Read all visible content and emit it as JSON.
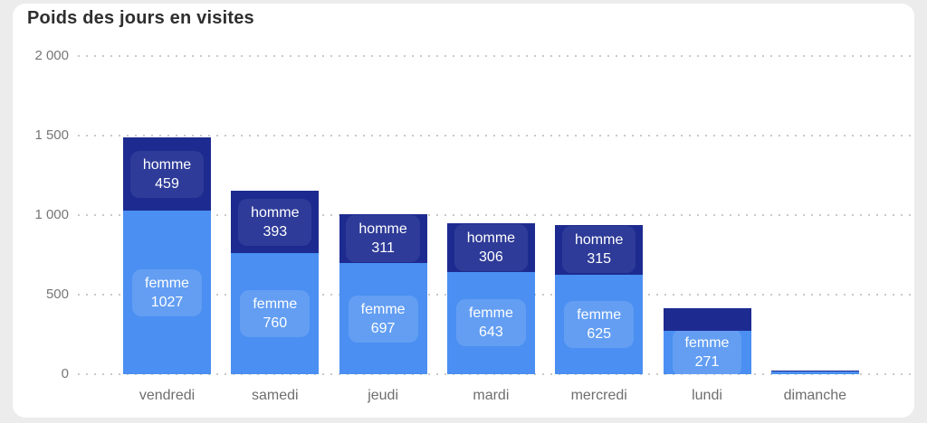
{
  "card": {
    "title": "Poids des jours en visites",
    "background": "#ffffff"
  },
  "page": {
    "background": "#ececec"
  },
  "chart_data": {
    "type": "bar",
    "stacked": true,
    "title": "Poids des jours en visites",
    "xlabel": "",
    "ylabel": "",
    "legend": "none",
    "grid": "dotted-horizontal",
    "ylim": [
      0,
      2000
    ],
    "categories": [
      "vendredi",
      "samedi",
      "jeudi",
      "mardi",
      "mercredi",
      "lundi",
      "dimanche"
    ],
    "series": [
      {
        "name": "femme",
        "color": "#4a8ff1",
        "pill_color": "rgba(255,255,255,0.14)",
        "values": [
          1027,
          760,
          697,
          643,
          625,
          271,
          15
        ],
        "labels_visible": [
          true,
          true,
          true,
          true,
          true,
          true,
          false
        ]
      },
      {
        "name": "homme",
        "color": "#1d2b90",
        "pill_color": "rgba(255,255,255,0.08)",
        "values": [
          459,
          393,
          311,
          306,
          315,
          145,
          8
        ],
        "labels_visible": [
          true,
          true,
          true,
          true,
          true,
          false,
          false
        ]
      }
    ],
    "totals": [
      1486,
      1153,
      1008,
      949,
      940,
      416,
      23
    ],
    "yticks": [
      {
        "label": "0",
        "value": 0
      },
      {
        "label": "500",
        "value": 500
      },
      {
        "label": "1 000",
        "value": 1000
      },
      {
        "label": "1 500",
        "value": 1500
      },
      {
        "label": "2 000",
        "value": 2000
      }
    ]
  }
}
